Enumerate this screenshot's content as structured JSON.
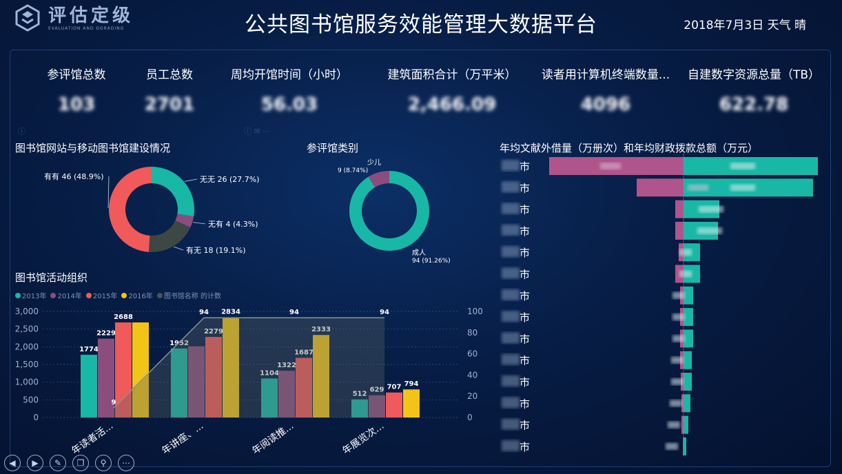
{
  "header": {
    "logo_cn": "评估定级",
    "logo_en": "EVALUATION AND GGRADING",
    "title": "公共图书馆服务效能管理大数据平台",
    "date_weather": "2018年7月3日 天气 晴"
  },
  "kpis": [
    {
      "label": "参评馆总数",
      "value": "103"
    },
    {
      "label": "员工总数",
      "value": "2701"
    },
    {
      "label": "周均开馆时间（小时）",
      "value": "56.03"
    },
    {
      "label": "建筑面积合计（万平米）",
      "value": "2,466.09"
    },
    {
      "label": "读者用计算机终端数量...",
      "value": "4096"
    },
    {
      "label": "自建数字资源总量（TB）",
      "value": "622.78"
    }
  ],
  "sections": {
    "website": "图书馆网站与移动图书馆建设情况",
    "category": "参评馆类别",
    "activities": "图书馆活动组织",
    "loans": "年均文献外借量（万册次）和年均财政拨款总额（万元）"
  },
  "colors": {
    "teal": "#19b7a6",
    "purple": "#8a4d7e",
    "coral": "#f05a5a",
    "yellow": "#f2c418",
    "gray": "#4a5350",
    "pink_bar": "#b0548c"
  },
  "chart_data": [
    {
      "type": "pie",
      "title": "图书馆网站与移动图书馆建设情况",
      "slices": [
        {
          "label": "无无",
          "value": 26,
          "pct": "27.7%",
          "text": "无无 26 (27.7%)",
          "color": "#19b7a6"
        },
        {
          "label": "无有",
          "value": 4,
          "pct": "4.3%",
          "text": "无有 4 (4.3%)",
          "color": "#8a4d7e"
        },
        {
          "label": "有无",
          "value": 18,
          "pct": "19.1%",
          "text": "有无 18 (19.1%)",
          "color": "#3d4744"
        },
        {
          "label": "有有",
          "value": 46,
          "pct": "48.9%",
          "text": "有有 46 (48.9%)",
          "color": "#f05a5a"
        }
      ]
    },
    {
      "type": "pie",
      "title": "参评馆类别",
      "slices": [
        {
          "label": "成人",
          "value": 94,
          "pct": "91.26%",
          "text": "94 (91.26%)",
          "color": "#19b7a6"
        },
        {
          "label": "少儿",
          "value": 9,
          "pct": "8.74%",
          "text": "9 (8.74%)",
          "color": "#8a4d7e"
        }
      ]
    },
    {
      "type": "bar",
      "title": "图书馆活动组织",
      "categories": [
        "年读者活...",
        "年讲座、...",
        "年阅读推...",
        "年展览次..."
      ],
      "series": [
        {
          "name": "2013年",
          "color": "#19b7a6",
          "values": [
            1774,
            1952,
            1104,
            512
          ]
        },
        {
          "name": "2014年",
          "color": "#8a4d7e",
          "values": [
            2229,
            2013,
            1322,
            629
          ]
        },
        {
          "name": "2015年",
          "color": "#f05a5a",
          "values": [
            2688,
            2279,
            1687,
            707
          ]
        },
        {
          "name": "2016年",
          "color": "#f2c418",
          "values": [
            2688,
            2834,
            2333,
            794
          ]
        }
      ],
      "labeled": [
        [
          "1774",
          "2229",
          "2688",
          ""
        ],
        [
          "1952",
          "",
          "2279",
          "2834"
        ],
        [
          "1104",
          "1322",
          "1687",
          "2333"
        ],
        [
          "512",
          "629",
          "707",
          "794"
        ]
      ],
      "line": {
        "name": "图书馆名称 的计数",
        "color": "#4a5350",
        "values": [
          9,
          94,
          94,
          94
        ]
      },
      "y_ticks_left": [
        "3,000",
        "2,500",
        "2,000",
        "1,500",
        "1,000",
        "500",
        "0"
      ],
      "y_ticks_right": [
        "100",
        "80",
        "60",
        "40",
        "20",
        "0"
      ],
      "ylim": [
        0,
        3000
      ],
      "ylim_right": [
        0,
        100
      ]
    },
    {
      "type": "bar",
      "title": "年均文献外借量（万册次）和年均财政拨款总额（万元）",
      "categories": [
        "?市",
        "?市",
        "?市",
        "?市",
        "?市",
        "?市",
        "?市",
        "?东市",
        "?阳市",
        "?锦市",
        "?市",
        "?市",
        "?市",
        "?市"
      ],
      "series": [
        {
          "name": "年均文献外借量（万册次）",
          "color": "#b0548c",
          "values": [
            195,
            68,
            12,
            12,
            7,
            12,
            5,
            5,
            5,
            5,
            4,
            3,
            3,
            1
          ]
        },
        {
          "name": "年均财政拨款总额（万元）",
          "color": "#19b7a6",
          "values": [
            195,
            188,
            52,
            50,
            24,
            24,
            14,
            14,
            14,
            12,
            12,
            10,
            7,
            4
          ]
        }
      ]
    }
  ],
  "legend": [
    "2013年",
    "2014年",
    "2015年",
    "2016年",
    "图书馆名称 的计数"
  ],
  "toolbar": [
    {
      "name": "prev-icon",
      "glyph": "◀"
    },
    {
      "name": "next-icon",
      "glyph": "▶"
    },
    {
      "name": "pen-icon",
      "glyph": "✎"
    },
    {
      "name": "copy-icon",
      "glyph": "❐"
    },
    {
      "name": "zoom-icon",
      "glyph": "⚲"
    },
    {
      "name": "more-icon",
      "glyph": "⋯"
    }
  ]
}
